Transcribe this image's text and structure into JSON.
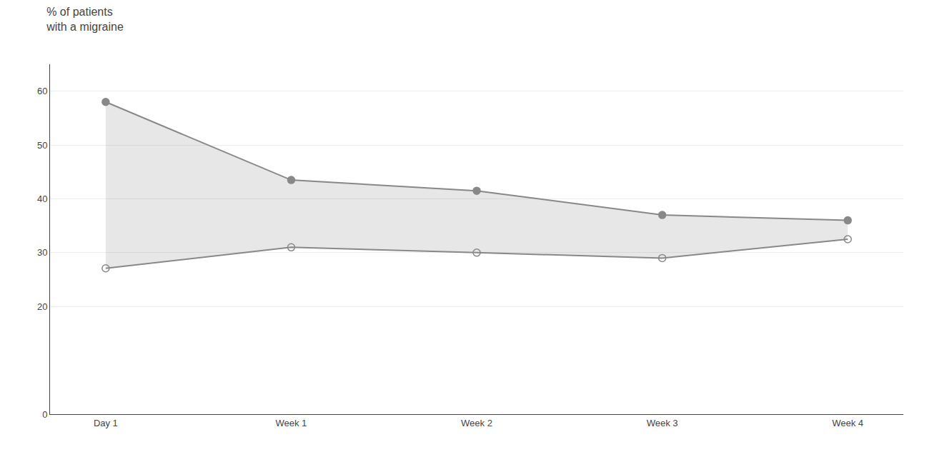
{
  "chart_data": {
    "type": "line",
    "title": "% of patients\nwith a migraine",
    "categories": [
      "Day 1",
      "Week 1",
      "Week 2",
      "Week 3",
      "Week 4"
    ],
    "series": [
      {
        "color": "#888888",
        "marker": "circle",
        "line_style": "solid",
        "values": [
          58.0,
          43.5,
          41.5,
          37.0,
          36.0
        ]
      },
      {
        "color": "#888888",
        "marker": "circle-open",
        "line_style": "solid",
        "values": [
          27.1,
          31.0,
          30.0,
          29.0,
          32.5
        ]
      }
    ],
    "ylim": [
      0,
      65
    ],
    "yticks": [
      0,
      20,
      30,
      40,
      50,
      60
    ],
    "grid": true
  }
}
